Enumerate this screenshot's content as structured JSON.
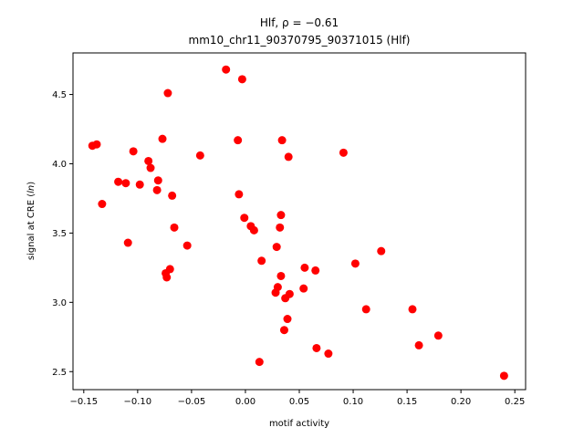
{
  "chart_data": {
    "type": "scatter",
    "title": "Hlf, ρ = −0.61",
    "subtitle": "mm10_chr11_90370795_90371015 (Hlf)",
    "xlabel": "motif activity",
    "ylabel": "signal at CRE (ln)",
    "xlim": [
      -0.16,
      0.26
    ],
    "ylim": [
      2.37,
      4.8
    ],
    "xticks": [
      -0.15,
      -0.1,
      -0.05,
      0.0,
      0.05,
      0.1,
      0.15,
      0.2,
      0.25
    ],
    "xtick_labels": [
      "−0.15",
      "−0.10",
      "−0.05",
      "0.00",
      "0.05",
      "0.10",
      "0.15",
      "0.20",
      "0.25"
    ],
    "yticks": [
      2.5,
      3.0,
      3.5,
      4.0,
      4.5
    ],
    "ytick_labels": [
      "2.5",
      "3.0",
      "3.5",
      "4.0",
      "4.5"
    ],
    "grid": false,
    "marker_color": "#ff0000",
    "points": [
      {
        "x": -0.142,
        "y": 4.13
      },
      {
        "x": -0.138,
        "y": 4.14
      },
      {
        "x": -0.133,
        "y": 3.71
      },
      {
        "x": -0.118,
        "y": 3.87
      },
      {
        "x": -0.111,
        "y": 3.86
      },
      {
        "x": -0.109,
        "y": 3.43
      },
      {
        "x": -0.104,
        "y": 4.09
      },
      {
        "x": -0.098,
        "y": 3.85
      },
      {
        "x": -0.09,
        "y": 4.02
      },
      {
        "x": -0.088,
        "y": 3.97
      },
      {
        "x": -0.082,
        "y": 3.81
      },
      {
        "x": -0.081,
        "y": 3.88
      },
      {
        "x": -0.077,
        "y": 4.18
      },
      {
        "x": -0.074,
        "y": 3.21
      },
      {
        "x": -0.073,
        "y": 3.18
      },
      {
        "x": -0.072,
        "y": 4.51
      },
      {
        "x": -0.07,
        "y": 3.24
      },
      {
        "x": -0.068,
        "y": 3.77
      },
      {
        "x": -0.066,
        "y": 3.54
      },
      {
        "x": -0.054,
        "y": 3.41
      },
      {
        "x": -0.042,
        "y": 4.06
      },
      {
        "x": -0.018,
        "y": 4.68
      },
      {
        "x": -0.007,
        "y": 4.17
      },
      {
        "x": -0.006,
        "y": 3.78
      },
      {
        "x": -0.003,
        "y": 4.61
      },
      {
        "x": -0.001,
        "y": 3.61
      },
      {
        "x": 0.005,
        "y": 3.55
      },
      {
        "x": 0.008,
        "y": 3.52
      },
      {
        "x": 0.013,
        "y": 2.57
      },
      {
        "x": 0.015,
        "y": 3.3
      },
      {
        "x": 0.028,
        "y": 3.07
      },
      {
        "x": 0.029,
        "y": 3.4
      },
      {
        "x": 0.03,
        "y": 3.11
      },
      {
        "x": 0.032,
        "y": 3.54
      },
      {
        "x": 0.033,
        "y": 3.63
      },
      {
        "x": 0.033,
        "y": 3.19
      },
      {
        "x": 0.034,
        "y": 4.17
      },
      {
        "x": 0.036,
        "y": 2.8
      },
      {
        "x": 0.037,
        "y": 3.03
      },
      {
        "x": 0.039,
        "y": 2.88
      },
      {
        "x": 0.04,
        "y": 4.05
      },
      {
        "x": 0.041,
        "y": 3.06
      },
      {
        "x": 0.054,
        "y": 3.1
      },
      {
        "x": 0.055,
        "y": 3.25
      },
      {
        "x": 0.065,
        "y": 3.23
      },
      {
        "x": 0.066,
        "y": 2.67
      },
      {
        "x": 0.077,
        "y": 2.63
      },
      {
        "x": 0.091,
        "y": 4.08
      },
      {
        "x": 0.102,
        "y": 3.28
      },
      {
        "x": 0.112,
        "y": 2.95
      },
      {
        "x": 0.126,
        "y": 3.37
      },
      {
        "x": 0.155,
        "y": 2.95
      },
      {
        "x": 0.161,
        "y": 2.69
      },
      {
        "x": 0.179,
        "y": 2.76
      },
      {
        "x": 0.24,
        "y": 2.47
      }
    ]
  }
}
